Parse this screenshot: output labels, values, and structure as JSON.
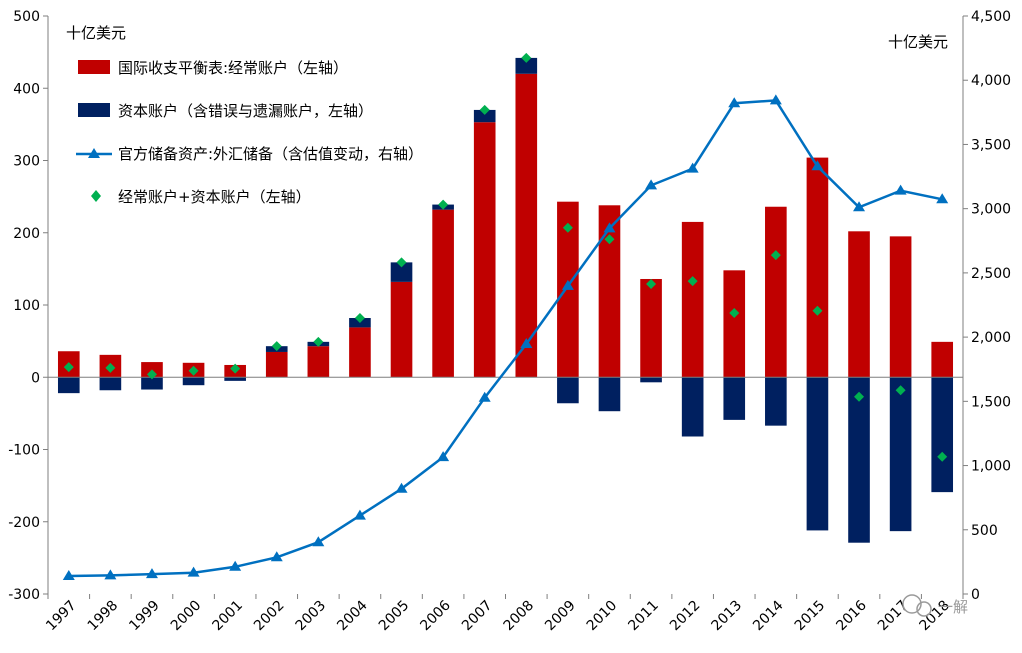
{
  "chart_data": {
    "type": "bar",
    "title": "",
    "left_unit": "十亿美元",
    "right_unit": "十亿美元",
    "categories": [
      "1997",
      "1998",
      "1999",
      "2000",
      "2001",
      "2002",
      "2003",
      "2004",
      "2005",
      "2006",
      "2007",
      "2008",
      "2009",
      "2010",
      "2011",
      "2012",
      "2013",
      "2014",
      "2015",
      "2016",
      "2017",
      "2018"
    ],
    "y_left": {
      "min": -300,
      "max": 500,
      "ticks": [
        "-300",
        "-200",
        "-100",
        "0",
        "100",
        "200",
        "300",
        "400",
        "500"
      ],
      "tick_values": [
        -300,
        -200,
        -100,
        0,
        100,
        200,
        300,
        400,
        500
      ]
    },
    "y_right": {
      "min": 0,
      "max": 4500,
      "ticks": [
        "0",
        "500",
        "1,000",
        "1,500",
        "2,000",
        "2,500",
        "3,000",
        "3,500",
        "4,000",
        "4,500"
      ],
      "tick_values": [
        0,
        500,
        1000,
        1500,
        2000,
        2500,
        3000,
        3500,
        4000,
        4500
      ]
    },
    "series": [
      {
        "name": "国际收支平衡表:经常账户（左轴）",
        "kind": "bar",
        "axis": "left",
        "color": "#C00000",
        "values": [
          36,
          31,
          21,
          20,
          17,
          35,
          43,
          69,
          132,
          232,
          353,
          420,
          243,
          238,
          136,
          215,
          148,
          236,
          304,
          202,
          195,
          49
        ]
      },
      {
        "name": "资本账户（含错误与遗漏账户，左轴）",
        "kind": "bar",
        "axis": "left",
        "color": "#002060",
        "values": [
          -22,
          -18,
          -17,
          -11,
          -5,
          8,
          6,
          13,
          27,
          7,
          17,
          22,
          -36,
          -47,
          -7,
          -82,
          -59,
          -67,
          -212,
          -229,
          -213,
          -159
        ]
      },
      {
        "name": "官方储备资产:外汇储备（含估值变动，右轴）",
        "kind": "line",
        "axis": "right",
        "color": "#0070C0",
        "values": [
          140,
          145,
          155,
          166,
          212,
          286,
          403,
          610,
          819,
          1066,
          1528,
          1946,
          2399,
          2847,
          3181,
          3312,
          3821,
          3843,
          3330,
          3011,
          3140,
          3073
        ]
      },
      {
        "name": "经常账户+资本账户（左轴）",
        "kind": "scatter",
        "axis": "left",
        "color": "#00B050",
        "values": [
          14,
          13,
          4,
          9,
          12,
          43,
          49,
          82,
          159,
          239,
          370,
          442,
          207,
          191,
          129,
          133,
          89,
          169,
          92,
          -27,
          -18,
          -110
        ]
      }
    ],
    "legend_position": "top-left",
    "grid": false
  },
  "watermark": {
    "text": "一解"
  }
}
